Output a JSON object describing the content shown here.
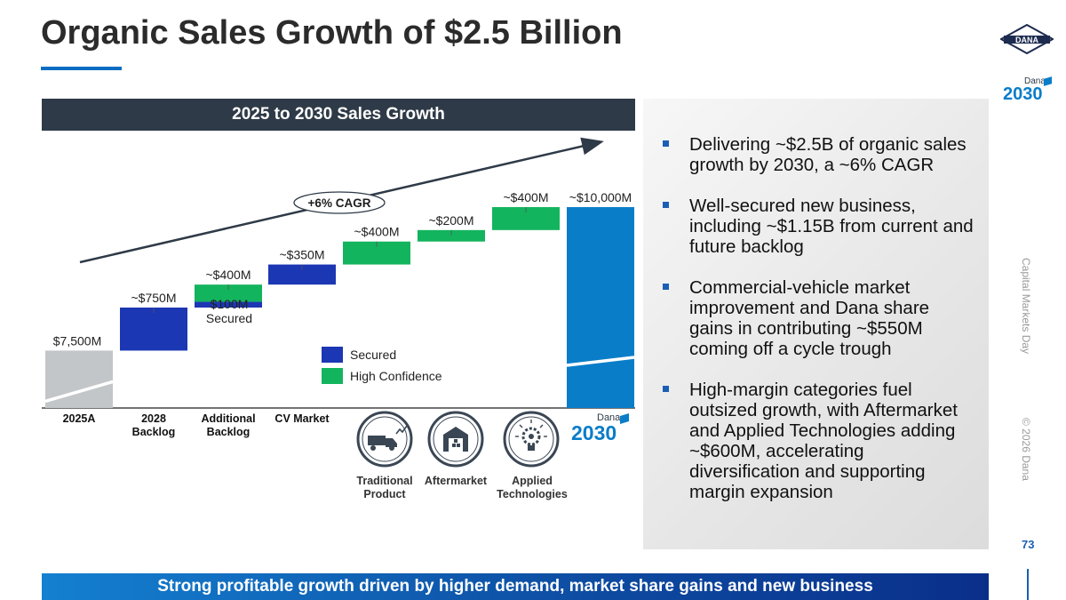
{
  "title": "Organic Sales Growth of $2.5 Billion",
  "chart_header": "2025 to 2030 Sales Growth",
  "colors": {
    "secured": "#1c37b4",
    "high_confidence": "#13b45e",
    "base_grey": "#c3c6c8",
    "target_blue": "#0a7dc9",
    "navy_header": "#2e3a47",
    "accent": "#0b6cc4"
  },
  "chart_data": {
    "type": "waterfall",
    "title": "2025 to 2030 Sales Growth",
    "units": "$M",
    "ylim": [
      6500,
      10000
    ],
    "categories": [
      "2025A",
      "2028 Backlog",
      "Additional Backlog",
      "CV Market",
      "Traditional Product",
      "Aftermarket",
      "Applied Technologies",
      "Dana 2030"
    ],
    "steps": [
      {
        "category": "2025A",
        "kind": "total",
        "value": 7500,
        "label": "$7,500M"
      },
      {
        "category": "2028 Backlog",
        "kind": "delta",
        "secured": 750,
        "high_confidence": 0,
        "label": "~$750M"
      },
      {
        "category": "Additional Backlog",
        "kind": "delta",
        "secured": 100,
        "high_confidence": 300,
        "label": "~$400M",
        "sub_label": "$100M Secured"
      },
      {
        "category": "CV Market",
        "kind": "delta",
        "secured": 350,
        "high_confidence": 0,
        "label": "~$350M"
      },
      {
        "category": "Traditional Product",
        "kind": "delta",
        "secured": 0,
        "high_confidence": 400,
        "label": "~$400M"
      },
      {
        "category": "Aftermarket",
        "kind": "delta",
        "secured": 0,
        "high_confidence": 200,
        "label": "~$200M"
      },
      {
        "category": "Applied Technologies",
        "kind": "delta",
        "secured": 0,
        "high_confidence": 400,
        "label": "~$400M"
      },
      {
        "category": "Dana 2030",
        "kind": "total",
        "value": 10000,
        "label": "~$10,000M"
      }
    ],
    "legend": [
      {
        "name": "Secured",
        "color": "#1c37b4"
      },
      {
        "name": "High Confidence",
        "color": "#13b45e"
      }
    ],
    "annotation": "+6% CAGR"
  },
  "x_labels": {
    "l0a": "2025A",
    "l1a": "2028",
    "l1b": "Backlog",
    "l2a": "Additional",
    "l2b": "Backlog",
    "l3a": "CV Market"
  },
  "secured_note": {
    "line1": "$100M",
    "line2": "Secured"
  },
  "icon_captions": {
    "traditional": {
      "line1": "Traditional",
      "line2": "Product"
    },
    "aftermarket": "Aftermarket",
    "applied": {
      "line1": "Applied",
      "line2": "Technologies"
    }
  },
  "bullets": [
    "Delivering ~$2.5B of organic sales growth by 2030, a ~6% CAGR",
    "Well-secured new business, including ~$1.15B from current and future backlog",
    "Commercial-vehicle market improvement and Dana share gains in contributing ~$550M coming off a cycle trough",
    "High-margin categories fuel outsized growth, with Aftermarket and Applied Technologies adding ~$600M, accelerating diversification and supporting margin expansion"
  ],
  "footer": "Strong profitable growth driven by higher demand, market share gains and new business",
  "side_text": {
    "event": "Capital Markets Day",
    "copyright": "© 2026 Dana"
  },
  "page_number": "73",
  "logo": {
    "brand": "DANA",
    "small": "Dana",
    "year": "2030"
  }
}
